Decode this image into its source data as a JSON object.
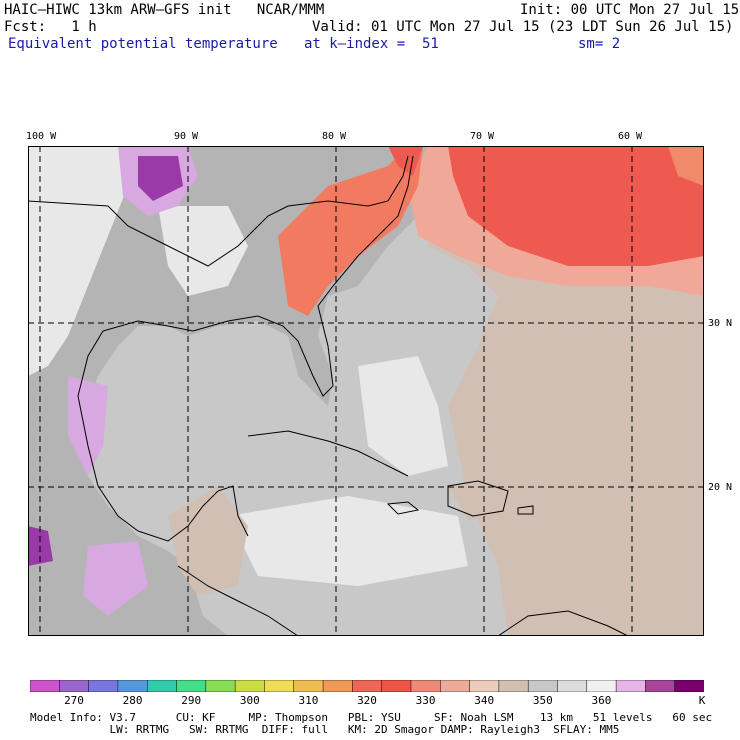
{
  "header": {
    "model": "HAIC–HIWC 13km ARW–GFS init   NCAR/MMM",
    "init": "Init: 00 UTC Mon 27 Jul 15",
    "fcst": "Fcst:   1 h",
    "valid": "Valid: 01 UTC Mon 27 Jul 15 (23 LDT Sun 26 Jul 15)",
    "field": "Equivalent potential temperature",
    "level": "at k–index =  51",
    "smoothing": "sm= 2"
  },
  "map": {
    "lon_labels": [
      "100 W",
      "90 W",
      "80 W",
      "70 W",
      "60 W"
    ],
    "lat_labels": [
      "30 N",
      "20 N"
    ],
    "grid_style": "dashed",
    "gridlines": true
  },
  "colorbar": {
    "units": "K",
    "labels": [
      "270",
      "280",
      "290",
      "300",
      "310",
      "320",
      "330",
      "340",
      "350",
      "360"
    ],
    "colors": [
      "#cc55cc",
      "#9966cc",
      "#7777dd",
      "#5599dd",
      "#33ccaa",
      "#44dd88",
      "#88dd55",
      "#ccdd44",
      "#eedd55",
      "#eebb55",
      "#ee9955",
      "#ee6655",
      "#ee5544",
      "#ee8877",
      "#eeaa99",
      "#eeccbb",
      "#d2bfb4",
      "#c8c8c8",
      "#dddddd",
      "#f0f0f0",
      "#e6b4e6",
      "#aa4499",
      "#7a006e"
    ]
  },
  "footer": {
    "line1": "Model Info: V3.7      CU: KF     MP: Thompson   PBL: YSU     SF: Noah LSM    13 km   51 levels   60 sec",
    "line2": "            LW: RRTMG   SW: RRTMG  DIFF: full   KM: 2D Smagor DAMP: Rayleigh3  SFLAY: MM5"
  },
  "palette": {
    "land_grey": "#b4b4b4",
    "ocean_grey": "#c8c8c8",
    "light": "#e8e8e8",
    "tan": "#d2bfb4",
    "salmon": "#f0a898",
    "red": "#ee5a50",
    "orange_red": "#f27a60",
    "purple": "#d8a8e0",
    "dark_purple": "#9a3aa8"
  }
}
